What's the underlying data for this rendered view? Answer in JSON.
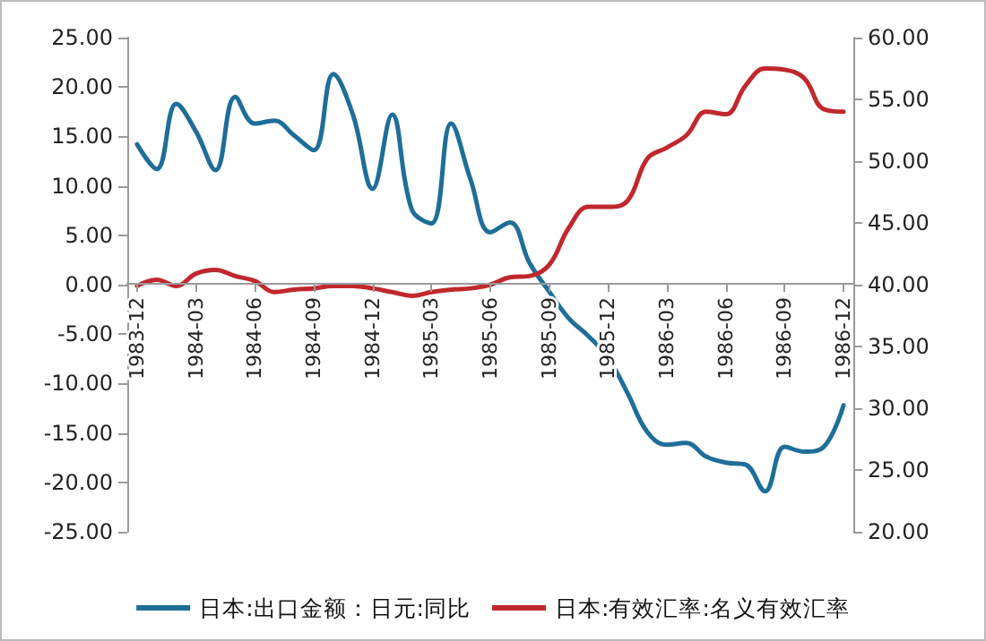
{
  "chart_data": {
    "type": "line",
    "categories": [
      "1983-12",
      null,
      null,
      "1984-03",
      null,
      null,
      "1984-06",
      null,
      null,
      "1984-09",
      null,
      null,
      "1984-12",
      null,
      null,
      "1985-03",
      null,
      null,
      "1985-06",
      null,
      null,
      "1985-09",
      null,
      null,
      "1985-12",
      null,
      null,
      "1986-03",
      null,
      null,
      "1986-06",
      null,
      null,
      "1986-09",
      null,
      null,
      "1986-12"
    ],
    "series": [
      {
        "name": "日本:出口金额：日元:同比",
        "color": "#1f6e99",
        "values": [
          14.2,
          11.7,
          18.3,
          15.5,
          11.6,
          19.0,
          16.3,
          16.6,
          15.1,
          13.6,
          21.3,
          17.2,
          9.7,
          17.2,
          7.6,
          6.2,
          16.3,
          10.6,
          5.3,
          6.3,
          2.2,
          -0.7,
          -3.4,
          -5.2,
          -7.4,
          -11.0,
          -14.9,
          -16.2,
          -16.0,
          -17.4,
          -18.0,
          -18.2,
          -20.9,
          -16.4,
          -16.9,
          -16.4,
          -12.2
        ]
      },
      {
        "name": "日本:有效汇率:名义有效汇率",
        "color": "#c0282d",
        "axis": "y2",
        "values": [
          39.9,
          40.4,
          39.9,
          40.9,
          41.2,
          40.7,
          40.3,
          39.4,
          39.6,
          39.7,
          39.9,
          39.9,
          39.7,
          39.4,
          39.1,
          39.4,
          39.6,
          39.7,
          40.0,
          40.6,
          40.7,
          41.6,
          44.6,
          46.3,
          46.3,
          46.8,
          50.2,
          51.1,
          52.1,
          54.0,
          53.8,
          56.1,
          57.5,
          57.4,
          56.7,
          54.2,
          54.0
        ]
      }
    ],
    "ylim": [
      -25,
      25
    ],
    "yticks": [
      {
        "value": -25,
        "label": "-25.00"
      },
      {
        "value": -20,
        "label": "-20.00"
      },
      {
        "value": -15,
        "label": "-15.00"
      },
      {
        "value": -10,
        "label": "-10.00"
      },
      {
        "value": -5,
        "label": "-5.00"
      },
      {
        "value": 0,
        "label": "0.00"
      },
      {
        "value": 5,
        "label": "5.00"
      },
      {
        "value": 10,
        "label": "10.00"
      },
      {
        "value": 15,
        "label": "15.00"
      },
      {
        "value": 20,
        "label": "20.00"
      },
      {
        "value": 25,
        "label": "25.00"
      }
    ],
    "y2lim": [
      20,
      60
    ],
    "y2ticks": [
      {
        "value": 20,
        "label": "20.00"
      },
      {
        "value": 25,
        "label": "25.00"
      },
      {
        "value": 30,
        "label": "30.00"
      },
      {
        "value": 35,
        "label": "35.00"
      },
      {
        "value": 40,
        "label": "40.00"
      },
      {
        "value": 45,
        "label": "45.00"
      },
      {
        "value": 50,
        "label": "50.00"
      },
      {
        "value": 55,
        "label": "55.00"
      },
      {
        "value": 60,
        "label": "60.00"
      }
    ],
    "grid": false,
    "legend": "bottom",
    "marker": "none",
    "line_style": "solid"
  }
}
